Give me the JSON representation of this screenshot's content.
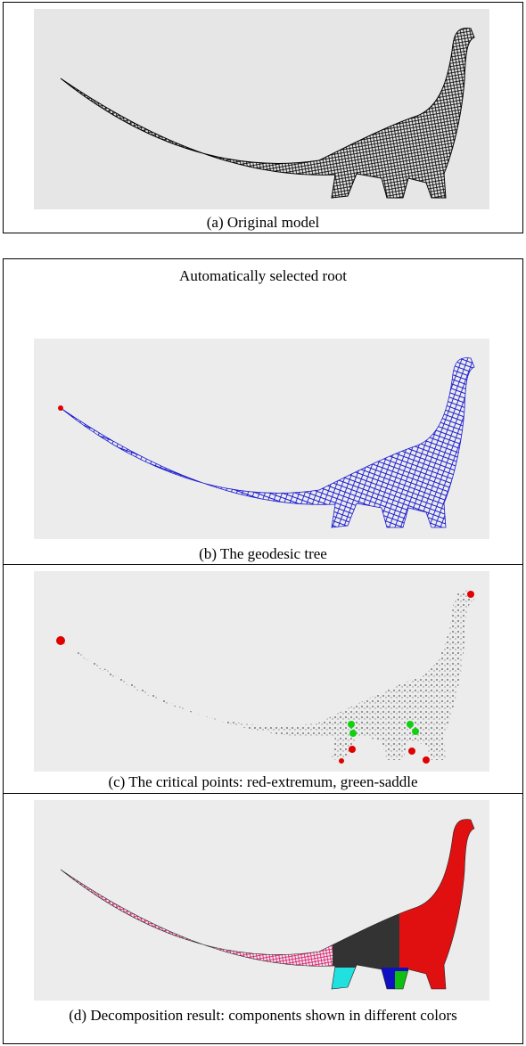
{
  "panels": [
    {
      "caption": "(a) Original model"
    },
    {
      "header": "Automatically selected root",
      "caption": "(b) The geodesic tree"
    },
    {
      "caption": "(c) The critical points: red-extremum, green-saddle"
    },
    {
      "caption": "(d) Decomposition result: components shown in different colors"
    }
  ]
}
